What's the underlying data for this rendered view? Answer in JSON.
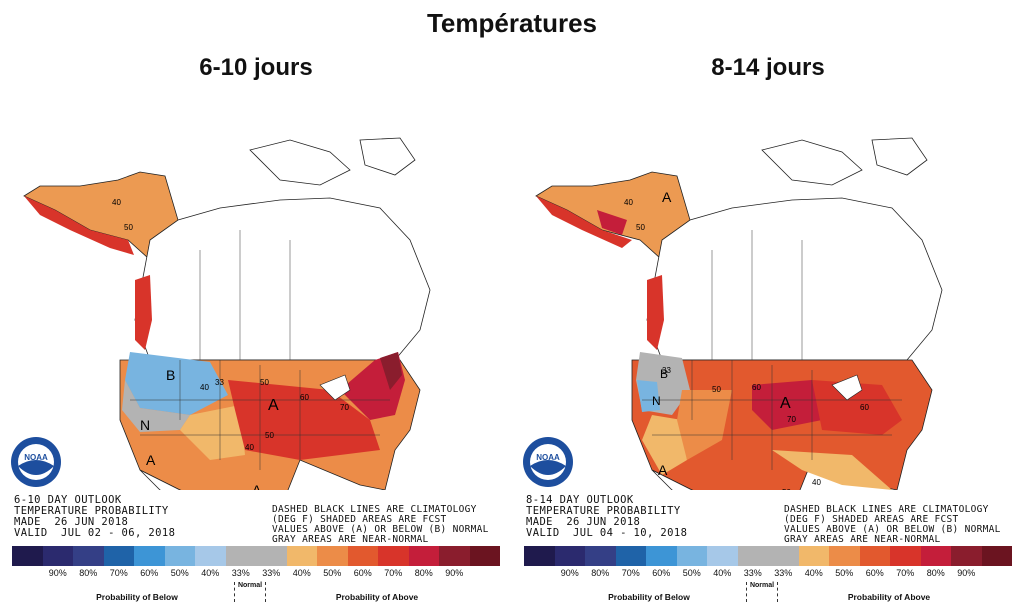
{
  "title": "Températures",
  "panels": [
    {
      "title": "6-10 jours",
      "outlook_lines": "6-10 DAY OUTLOOK\nTEMPERATURE PROBABILITY\nMADE  26 JUN 2018\nVALID  JUL 02 - 06, 2018",
      "labels": {
        "a1": "A",
        "a2": "A",
        "a3": "A",
        "b1": "B",
        "n1": "N"
      },
      "contours": {
        "c1": "40",
        "c2": "50",
        "c3": "33",
        "c4": "40",
        "c5": "50",
        "c6": "60",
        "c7": "70",
        "c8": "50",
        "c9": "40"
      }
    },
    {
      "title": "8-14 jours",
      "outlook_lines": "8-14 DAY OUTLOOK\nTEMPERATURE PROBABILITY\nMADE  26 JUN 2018\nVALID  JUL 04 - 10, 2018",
      "labels": {
        "a1": "A",
        "a2": "A",
        "a3": "A",
        "b1": "B",
        "n1": "N"
      },
      "contours": {
        "c1": "40",
        "c2": "50",
        "c3": "33",
        "c4": "50",
        "c5": "60",
        "c6": "70",
        "c7": "60",
        "c8": "50",
        "c9": "40"
      }
    }
  ],
  "legend_note": "DASHED BLACK LINES ARE CLIMATOLOGY\n(DEG F) SHADED AREAS ARE FCST\nVALUES ABOVE (A) OR BELOW (B) NORMAL\nGRAY AREAS ARE NEAR-NORMAL",
  "legend": {
    "colors": [
      "#1f1a4d",
      "#2b2a6e",
      "#343f86",
      "#1f63a8",
      "#3d95d6",
      "#78b4e0",
      "#a6c8e8",
      "#b3b3b3",
      "#b3b3b3",
      "#f1b86a",
      "#ec8c48",
      "#e2592e",
      "#d8342a",
      "#c41e3a",
      "#8a1d2d",
      "#6b1420"
    ],
    "percent_labels": [
      "90%",
      "80%",
      "70%",
      "60%",
      "50%",
      "40%",
      "33%",
      "33%",
      "40%",
      "50%",
      "60%",
      "70%",
      "80%",
      "90%"
    ],
    "below_label": "Probability of Below",
    "normal_label": "Normal",
    "above_label": "Probability of Above"
  },
  "logo_text": "NOAA"
}
